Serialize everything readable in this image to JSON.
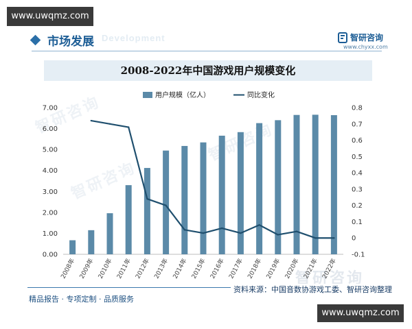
{
  "watermarks": {
    "top": "www.uwqmz.com",
    "bottom": "www.uwqmz.com"
  },
  "header": {
    "section_title": "市场发展",
    "ghost_text": "Development",
    "brand_name": "智研咨询",
    "brand_url": "www.chyxx.com"
  },
  "footer": {
    "source": "资料来源：中国音数协游戏工委、智研咨询整理",
    "slogan": "精品报告 · 专项定制 · 品质服务",
    "watermark_brand": "智研咨询"
  },
  "colors": {
    "bar": "#5b8aa8",
    "line": "#1f4f6e",
    "accent": "#2b6fa8",
    "title_bg": "#e5eef5"
  },
  "chart_data": {
    "type": "bar+line",
    "title": "2008-2022年中国游戏用户规模变化",
    "categories": [
      "2008年",
      "2009年",
      "2010年",
      "2011年",
      "2012年",
      "2013年",
      "2014年",
      "2015年",
      "2016年",
      "2017年",
      "2018年",
      "2019年",
      "2020年",
      "2021年",
      "2022年"
    ],
    "series": [
      {
        "name": "用户规模（亿人）",
        "type": "bar",
        "axis": "left",
        "values": [
          0.67,
          1.15,
          1.96,
          3.3,
          4.12,
          4.95,
          5.17,
          5.34,
          5.66,
          5.83,
          6.26,
          6.4,
          6.65,
          6.66,
          6.64
        ]
      },
      {
        "name": "同比变化",
        "type": "line",
        "axis": "right",
        "values": [
          null,
          0.72,
          0.7,
          0.68,
          0.24,
          0.2,
          0.05,
          0.03,
          0.06,
          0.03,
          0.08,
          0.02,
          0.04,
          0.0,
          0.0
        ]
      }
    ],
    "left_axis": {
      "min": 0,
      "max": 7,
      "step": 1,
      "ticks": [
        "0.00",
        "1.00",
        "2.00",
        "3.00",
        "4.00",
        "5.00",
        "6.00",
        "7.00"
      ]
    },
    "right_axis": {
      "min": -0.1,
      "max": 0.8,
      "step": 0.1,
      "ticks": [
        "-0.1",
        "0",
        "0.1",
        "0.2",
        "0.3",
        "0.4",
        "0.5",
        "0.6",
        "0.7",
        "0.8"
      ]
    },
    "legend_position": "top-center",
    "grid": false
  }
}
